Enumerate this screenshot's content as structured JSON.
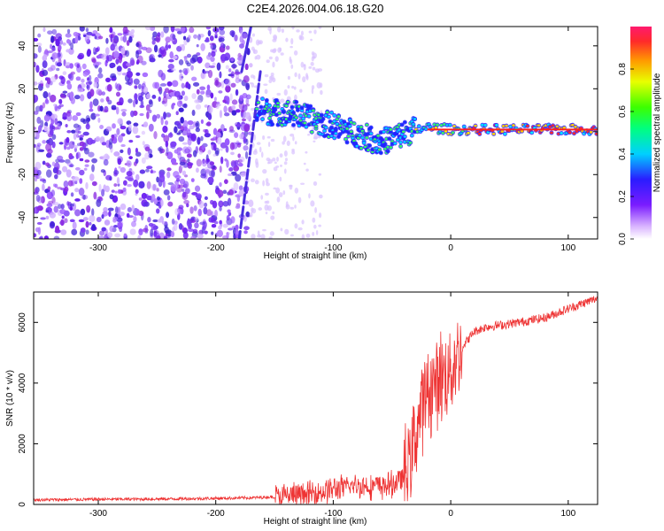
{
  "title": "C2E4.2026.004.06.18.G20",
  "chart_data": [
    {
      "type": "heatmap",
      "name": "spectrogram",
      "xlabel": "Height of straight line (km)",
      "ylabel": "Frequency (Hz)",
      "xlim": [
        -355,
        125
      ],
      "ylim": [
        -50,
        49
      ],
      "xticks": [
        -300,
        -200,
        -100,
        0,
        100
      ],
      "xtick_labels": [
        "-300",
        "-200",
        "-100",
        "0",
        "100"
      ],
      "yticks": [
        -40,
        -20,
        0,
        20,
        40
      ],
      "ytick_labels": [
        "-40",
        "-20",
        "0",
        "20",
        "40"
      ],
      "noise_region_x": [
        -355,
        -170
      ],
      "ridge": {
        "x": [
          -165,
          -150,
          -140,
          -130,
          -120,
          -110,
          -100,
          -90,
          -80,
          -70,
          -60,
          -50,
          -40,
          -30,
          -20,
          0,
          20,
          50,
          80,
          100,
          125
        ],
        "y": [
          10,
          9,
          9,
          8,
          6,
          4,
          3,
          1,
          -1,
          -3,
          -5,
          -3,
          -1,
          1,
          2,
          1,
          1,
          1,
          1,
          1,
          1
        ]
      },
      "colorbar": {
        "label": "Normalized spectral amplitude",
        "range": [
          0,
          1
        ],
        "ticks": [
          0.0,
          0.2,
          0.4,
          0.6,
          0.8
        ],
        "tick_labels": [
          "0.0",
          "0.2",
          "0.4",
          "0.6",
          "0.8"
        ]
      }
    },
    {
      "type": "line",
      "name": "snr",
      "xlabel": "Height of straight line (km)",
      "ylabel": "SNR (10 * v/v)",
      "xlim": [
        -355,
        125
      ],
      "ylim": [
        0,
        7000
      ],
      "xticks": [
        -300,
        -200,
        -100,
        0,
        100
      ],
      "xtick_labels": [
        "-300",
        "-200",
        "-100",
        "0",
        "100"
      ],
      "yticks": [
        0,
        2000,
        4000,
        6000
      ],
      "ytick_labels": [
        "0",
        "2000",
        "4000",
        "6000"
      ],
      "color": "#ee3333",
      "series": [
        {
          "name": "SNR",
          "x": [
            -355,
            -300,
            -250,
            -200,
            -170,
            -150,
            -120,
            -100,
            -80,
            -60,
            -50,
            -40,
            -35,
            -30,
            -25,
            -20,
            -15,
            -10,
            -5,
            0,
            5,
            10,
            20,
            30,
            50,
            80,
            100,
            125
          ],
          "y": [
            150,
            170,
            180,
            200,
            220,
            250,
            350,
            500,
            620,
            600,
            650,
            900,
            1500,
            2300,
            3200,
            3700,
            3900,
            4100,
            4300,
            4500,
            4700,
            5200,
            5700,
            5850,
            5950,
            6150,
            6450,
            6800
          ]
        }
      ]
    }
  ]
}
